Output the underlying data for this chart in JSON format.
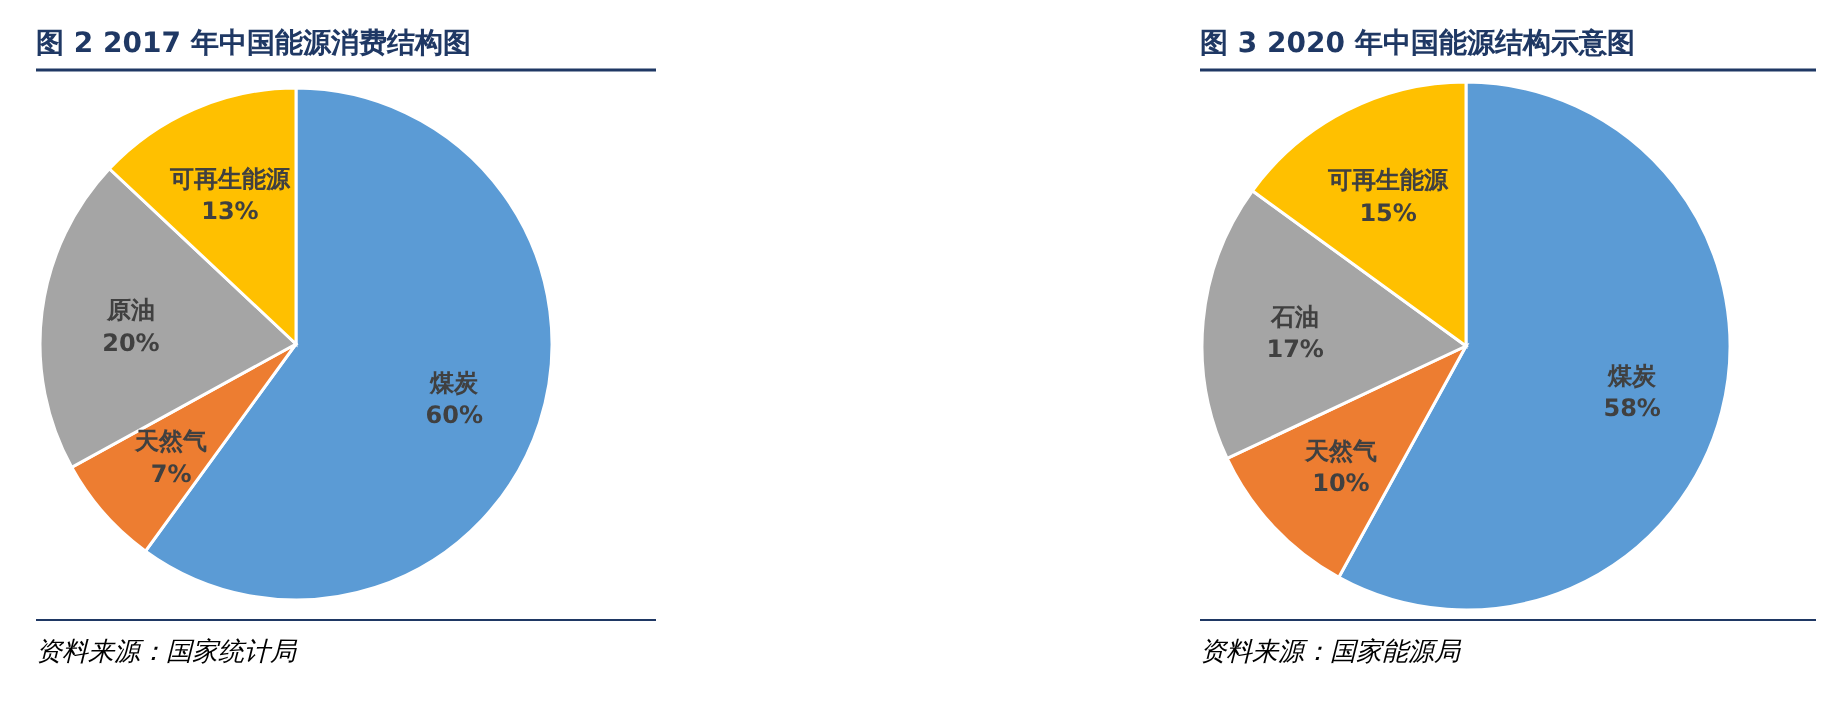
{
  "chart_data": [
    {
      "type": "pie",
      "title": "图 2 2017 年中国能源消费结构图",
      "categories": [
        "煤炭",
        "天然气",
        "原油",
        "可再生能源"
      ],
      "values": [
        60,
        7,
        20,
        13
      ],
      "colors": [
        "#5b9bd5",
        "#ed7d31",
        "#a5a5a5",
        "#ffc000"
      ],
      "value_labels": [
        "60%",
        "7%",
        "20%",
        "13%"
      ],
      "annotations": [
        "资料来源：国家统计局"
      ]
    },
    {
      "type": "pie",
      "title": "图 3 2020 年中国能源结构示意图",
      "categories": [
        "煤炭",
        "天然气",
        "石油",
        "可再生能源"
      ],
      "values": [
        58,
        10,
        17,
        15
      ],
      "colors": [
        "#5b9bd5",
        "#ed7d31",
        "#a5a5a5",
        "#ffc000"
      ],
      "value_labels": [
        "58%",
        "10%",
        "17%",
        "15%"
      ],
      "annotations": [
        "资料来源：国家能源局"
      ]
    }
  ]
}
